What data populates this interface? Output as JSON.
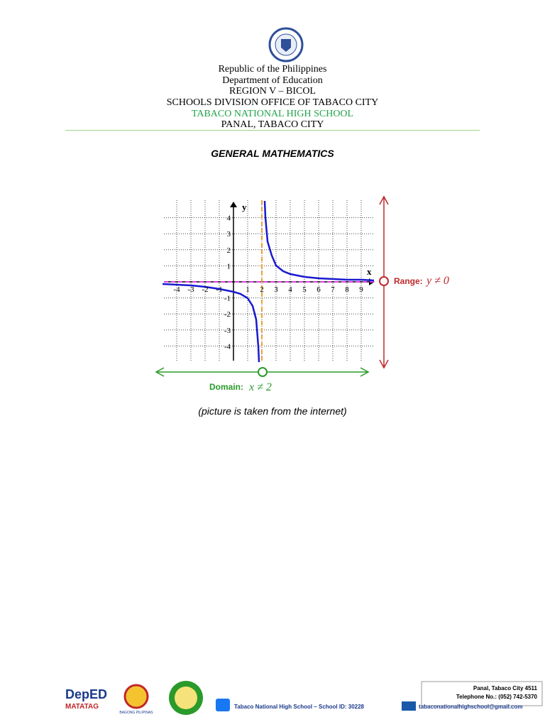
{
  "header": {
    "lines": [
      "Republic of the Philippines",
      "Department of Education",
      "REGION V – BICOL",
      "SCHOOLS DIVISION OFFICE OF TABACO CITY"
    ],
    "school": "TABACO NATIONAL HIGH SCHOOL",
    "address": "PANAL, TABACO CITY"
  },
  "title": "GENERAL MATHEMATICS",
  "figure": {
    "x_label": "x",
    "y_label": "y",
    "xticks": [
      -4,
      -3,
      -2,
      -1,
      1,
      2,
      3,
      4,
      5,
      6,
      7,
      8,
      9
    ],
    "yticks": [
      4,
      3,
      2,
      1,
      -1,
      -2,
      -3,
      -4
    ],
    "range_label": "Range:",
    "range_expr": "y ≠ 0",
    "domain_label": "Domain:",
    "domain_expr": "x ≠ 2"
  },
  "caption": "(picture is taken from the internet)",
  "footer": {
    "logo1": "DepED",
    "logo1b": "MATATAG",
    "logo2": "BAGONG PILIPINAS",
    "facebook": "Tabaco National High School – School ID: 30228",
    "contact_address": "Panal, Tabaco City 4511",
    "telephone": "Telephone No.: (052) 742-5370",
    "email": "tabaconationalhighschool@gmail.com"
  }
}
